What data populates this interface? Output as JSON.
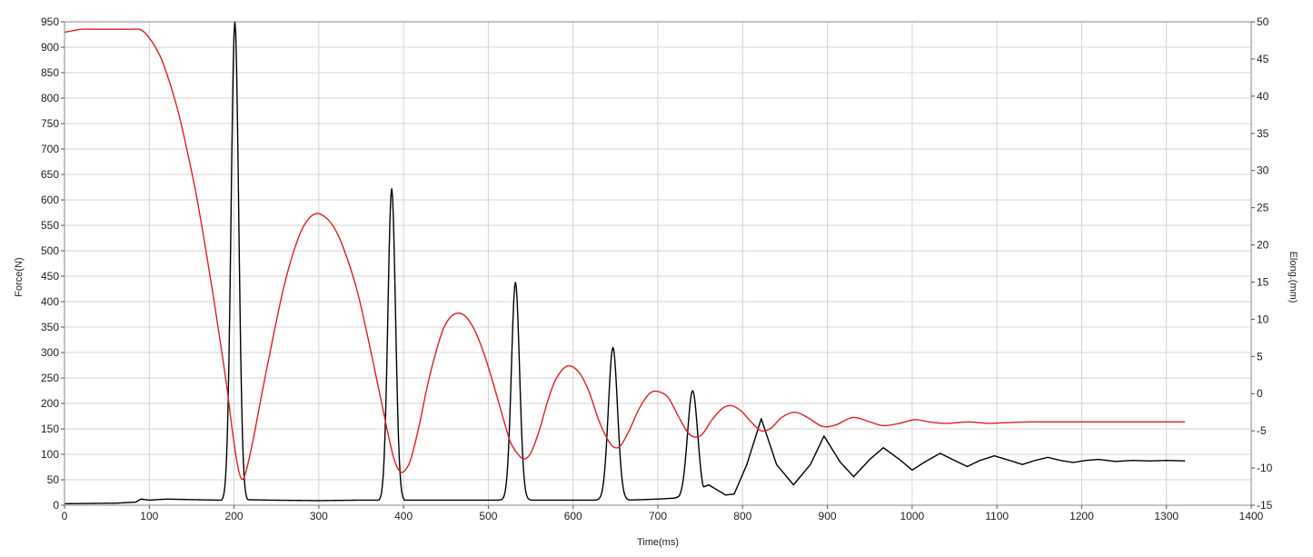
{
  "chart_data": {
    "type": "line",
    "xlabel": "Time(ms)",
    "ylabel_left": "Force(N)",
    "ylabel_right": "Elong.(mm)",
    "xlim": [
      0,
      1400
    ],
    "ylim_left": [
      0,
      950
    ],
    "ylim_right": [
      -15,
      50
    ],
    "x_ticks": [
      0,
      100,
      200,
      300,
      400,
      500,
      600,
      700,
      800,
      900,
      1000,
      1100,
      1200,
      1300,
      1400
    ],
    "y_left_ticks": [
      0,
      50,
      100,
      150,
      200,
      250,
      300,
      350,
      400,
      450,
      500,
      550,
      600,
      650,
      700,
      750,
      800,
      850,
      900,
      950
    ],
    "y_right_ticks": [
      -15,
      -10,
      -5,
      0,
      5,
      10,
      15,
      20,
      25,
      30,
      35,
      40,
      45,
      50
    ],
    "grid": true,
    "series": [
      {
        "axis": "left",
        "color": "#000000",
        "peaks": [
          {
            "t": 201,
            "peak": 950,
            "width": 15,
            "base": 8
          },
          {
            "t": 386,
            "peak": 622,
            "width": 15,
            "base": 8
          },
          {
            "t": 532,
            "peak": 438,
            "width": 16,
            "base": 10
          },
          {
            "t": 647,
            "peak": 310,
            "width": 18,
            "base": 10
          },
          {
            "t": 741,
            "peak": 225,
            "width": 20,
            "base": 12
          }
        ],
        "points": [
          [
            0,
            3
          ],
          [
            60,
            4
          ],
          [
            84,
            6
          ],
          [
            90,
            12
          ],
          [
            100,
            10
          ],
          [
            120,
            12
          ],
          [
            150,
            11
          ],
          [
            180,
            10
          ],
          [
            186,
            10
          ],
          [
            211,
            11
          ],
          [
            240,
            10
          ],
          [
            300,
            9
          ],
          [
            350,
            10
          ],
          [
            371,
            10
          ],
          [
            397,
            10
          ],
          [
            450,
            10
          ],
          [
            500,
            10
          ],
          [
            518,
            10
          ],
          [
            546,
            10
          ],
          [
            580,
            10
          ],
          [
            620,
            10
          ],
          [
            630,
            10
          ],
          [
            664,
            10
          ],
          [
            700,
            12
          ],
          [
            720,
            14
          ],
          [
            760,
            40
          ],
          [
            780,
            20
          ],
          [
            790,
            22
          ],
          [
            805,
            80
          ],
          [
            822,
            170
          ],
          [
            840,
            80
          ],
          [
            860,
            40
          ],
          [
            880,
            80
          ],
          [
            896,
            136
          ],
          [
            915,
            85
          ],
          [
            931,
            56
          ],
          [
            950,
            90
          ],
          [
            966,
            113
          ],
          [
            985,
            90
          ],
          [
            1000,
            69
          ],
          [
            1015,
            85
          ],
          [
            1033,
            102
          ],
          [
            1050,
            88
          ],
          [
            1065,
            76
          ],
          [
            1080,
            88
          ],
          [
            1097,
            97
          ],
          [
            1115,
            88
          ],
          [
            1130,
            80
          ],
          [
            1145,
            88
          ],
          [
            1160,
            94
          ],
          [
            1175,
            88
          ],
          [
            1190,
            84
          ],
          [
            1205,
            88
          ],
          [
            1220,
            90
          ],
          [
            1240,
            86
          ],
          [
            1260,
            88
          ],
          [
            1280,
            87
          ],
          [
            1300,
            88
          ],
          [
            1322,
            87
          ]
        ]
      },
      {
        "axis": "right",
        "color": "#e02020",
        "points": [
          [
            0,
            48.6
          ],
          [
            10,
            48.8
          ],
          [
            20,
            49.0
          ],
          [
            40,
            49.0
          ],
          [
            60,
            49.0
          ],
          [
            80,
            49.0
          ],
          [
            88,
            49.0
          ],
          [
            95,
            48.5
          ],
          [
            105,
            47.0
          ],
          [
            115,
            44.8
          ],
          [
            125,
            41.5
          ],
          [
            135,
            37.5
          ],
          [
            145,
            32.5
          ],
          [
            155,
            27.0
          ],
          [
            165,
            20.5
          ],
          [
            175,
            13.5
          ],
          [
            185,
            6.0
          ],
          [
            192,
            0.5
          ],
          [
            198,
            -5.0
          ],
          [
            204,
            -9.5
          ],
          [
            209,
            -11.5
          ],
          [
            214,
            -10.5
          ],
          [
            222,
            -6.5
          ],
          [
            232,
            -0.5
          ],
          [
            245,
            7.0
          ],
          [
            258,
            14.0
          ],
          [
            270,
            19.0
          ],
          [
            282,
            22.5
          ],
          [
            296,
            24.2
          ],
          [
            310,
            23.5
          ],
          [
            322,
            21.5
          ],
          [
            334,
            18.0
          ],
          [
            346,
            13.5
          ],
          [
            358,
            7.5
          ],
          [
            370,
            1.0
          ],
          [
            380,
            -4.5
          ],
          [
            388,
            -8.5
          ],
          [
            394,
            -10.2
          ],
          [
            400,
            -10.5
          ],
          [
            408,
            -9.0
          ],
          [
            418,
            -4.5
          ],
          [
            428,
            1.0
          ],
          [
            438,
            5.5
          ],
          [
            448,
            9.0
          ],
          [
            460,
            10.7
          ],
          [
            472,
            10.5
          ],
          [
            484,
            8.5
          ],
          [
            496,
            5.0
          ],
          [
            508,
            0.5
          ],
          [
            518,
            -3.5
          ],
          [
            526,
            -6.5
          ],
          [
            534,
            -8.0
          ],
          [
            542,
            -8.8
          ],
          [
            550,
            -8.0
          ],
          [
            560,
            -5.0
          ],
          [
            570,
            -1.0
          ],
          [
            580,
            2.0
          ],
          [
            593,
            3.7
          ],
          [
            606,
            3.0
          ],
          [
            618,
            0.5
          ],
          [
            630,
            -3.5
          ],
          [
            640,
            -6.0
          ],
          [
            648,
            -7.2
          ],
          [
            656,
            -7.0
          ],
          [
            666,
            -5.0
          ],
          [
            678,
            -2.0
          ],
          [
            690,
            0.0
          ],
          [
            700,
            0.3
          ],
          [
            712,
            -0.5
          ],
          [
            724,
            -3.0
          ],
          [
            734,
            -5.0
          ],
          [
            742,
            -5.8
          ],
          [
            752,
            -5.5
          ],
          [
            764,
            -3.5
          ],
          [
            776,
            -2.0
          ],
          [
            786,
            -1.6
          ],
          [
            798,
            -2.3
          ],
          [
            810,
            -3.8
          ],
          [
            822,
            -5.0
          ],
          [
            834,
            -4.6
          ],
          [
            846,
            -3.2
          ],
          [
            862,
            -2.5
          ],
          [
            878,
            -3.3
          ],
          [
            894,
            -4.4
          ],
          [
            910,
            -4.2
          ],
          [
            930,
            -3.2
          ],
          [
            950,
            -3.8
          ],
          [
            966,
            -4.3
          ],
          [
            985,
            -4.0
          ],
          [
            1003,
            -3.5
          ],
          [
            1020,
            -3.8
          ],
          [
            1040,
            -4.0
          ],
          [
            1066,
            -3.8
          ],
          [
            1090,
            -4.0
          ],
          [
            1110,
            -3.9
          ],
          [
            1140,
            -3.8
          ],
          [
            1170,
            -3.8
          ],
          [
            1200,
            -3.8
          ],
          [
            1250,
            -3.8
          ],
          [
            1300,
            -3.8
          ],
          [
            1322,
            -3.8
          ]
        ]
      }
    ]
  }
}
